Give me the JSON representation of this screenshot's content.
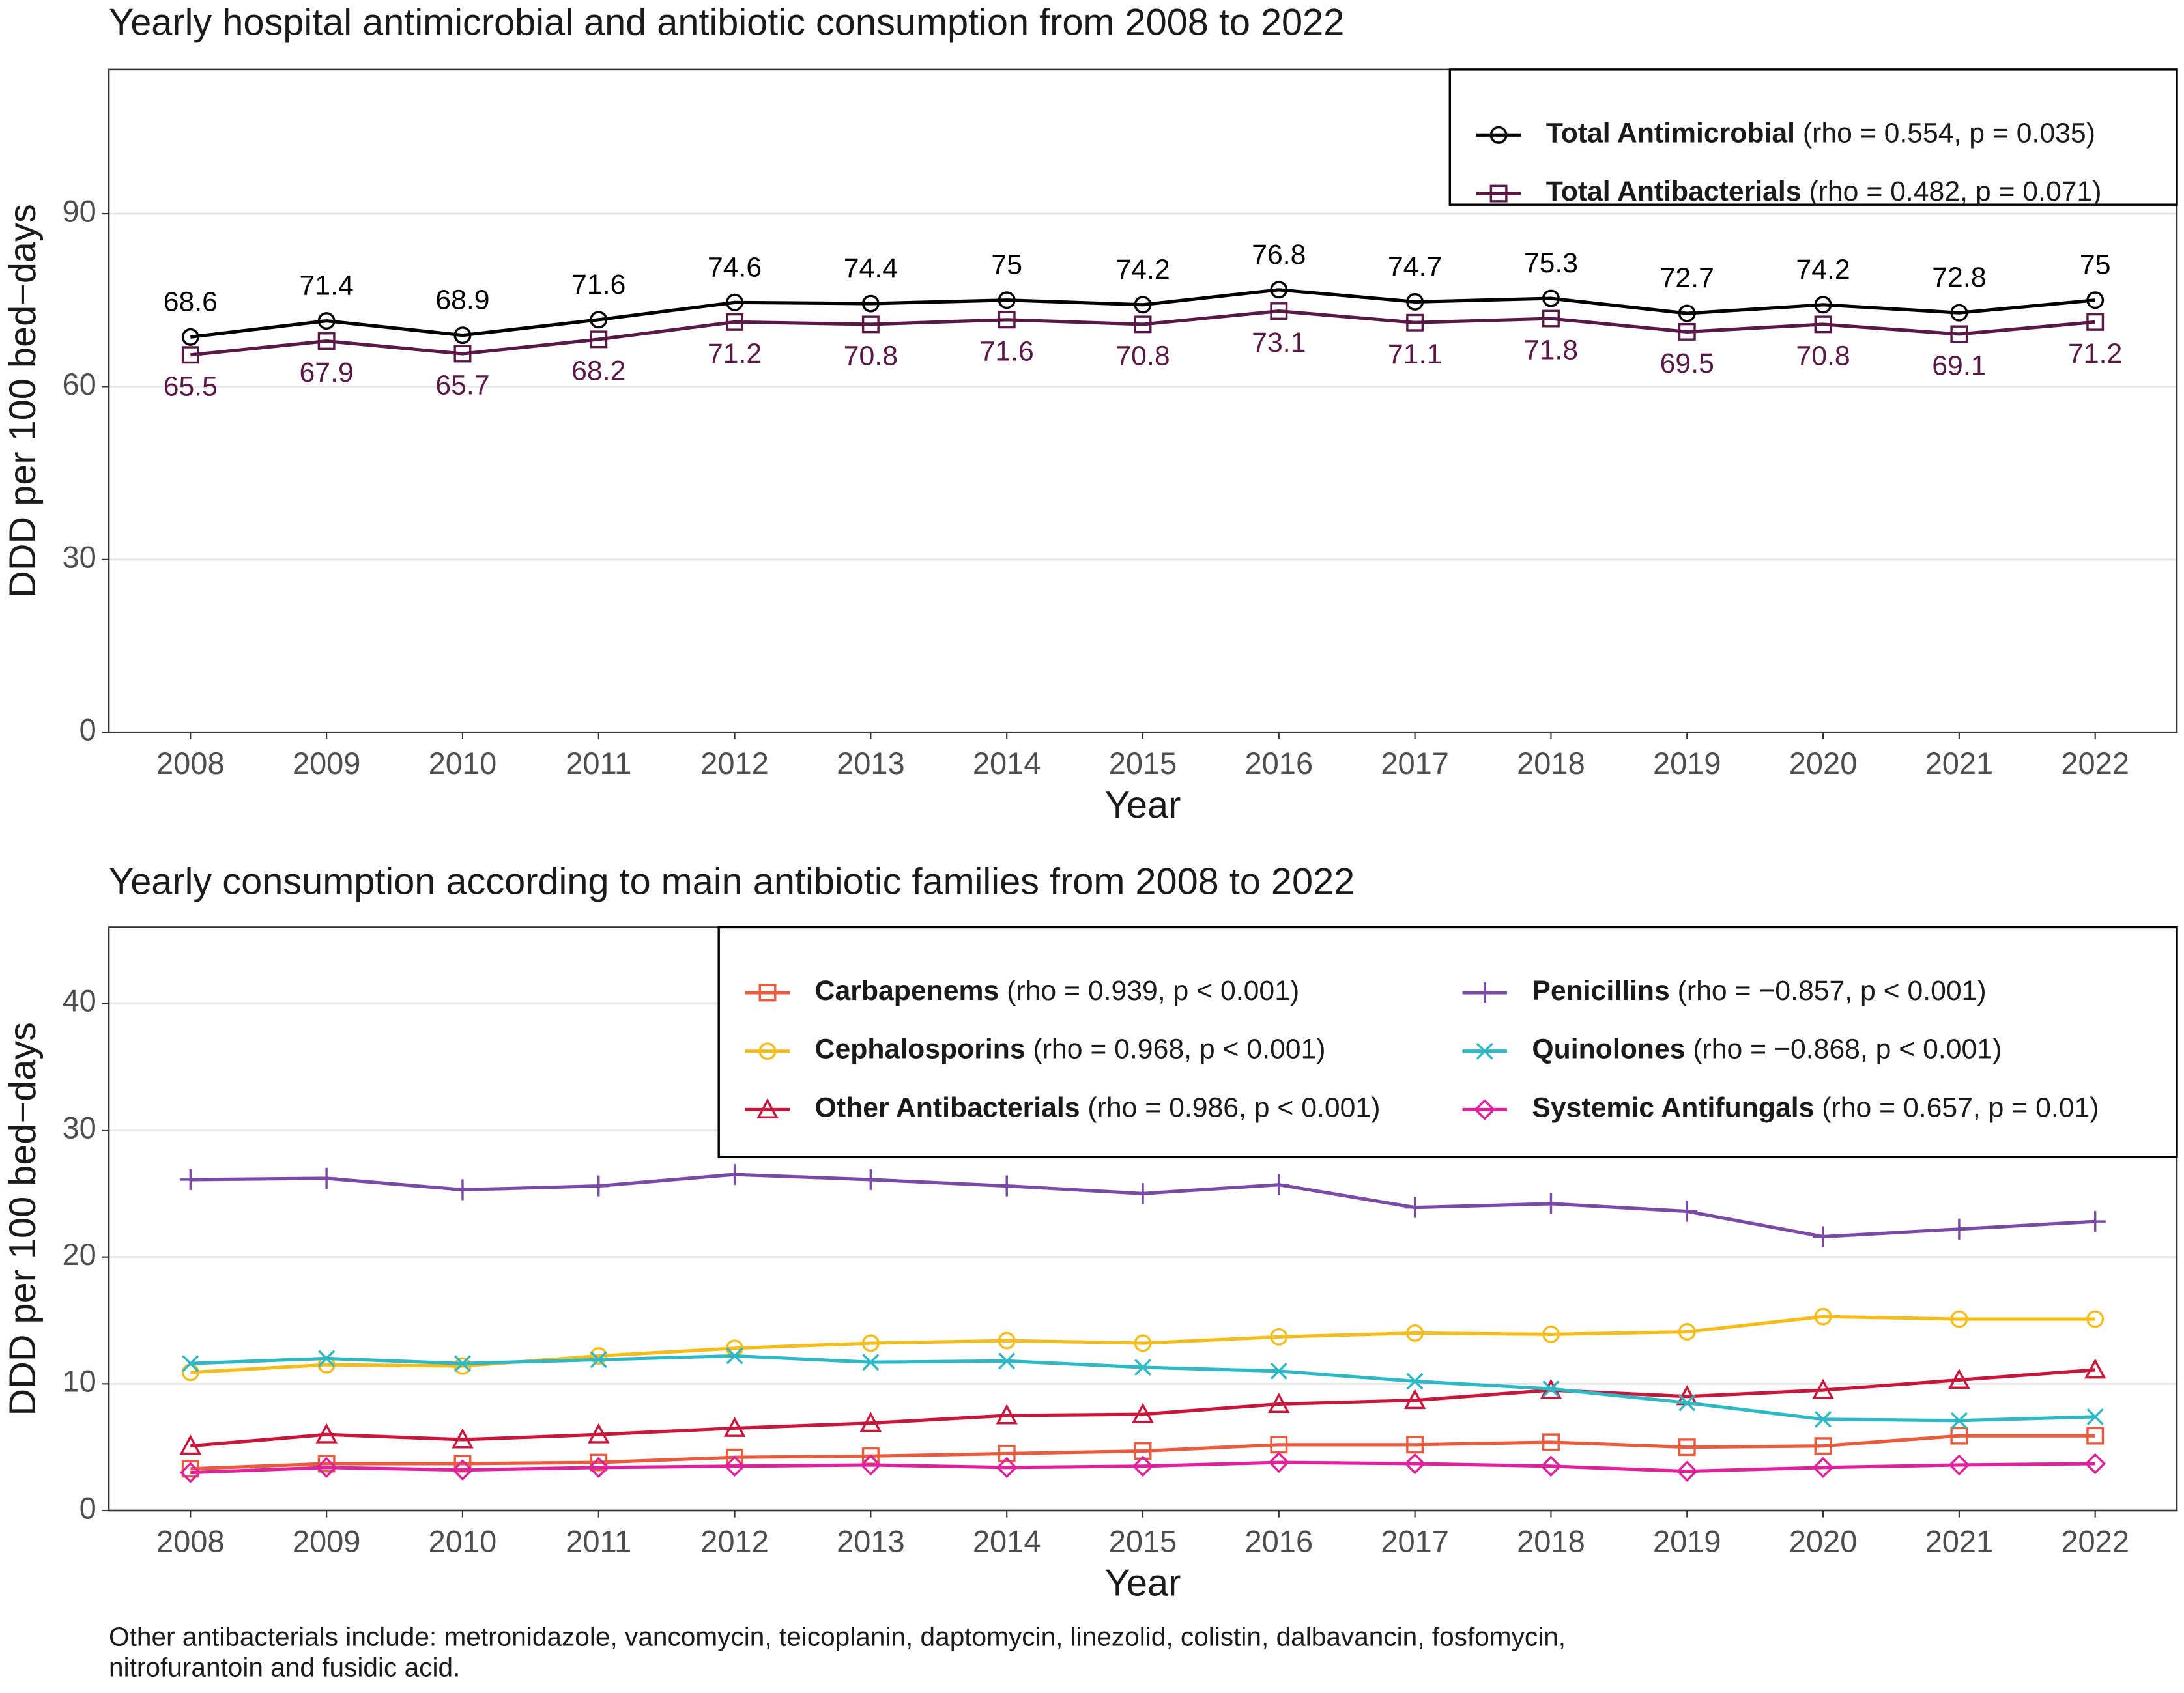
{
  "chart_data": [
    {
      "type": "line",
      "title": "Yearly hospital antimicrobial and antibiotic consumption from 2008 to 2022",
      "x_label": "Year",
      "y_label": "DDD per 100 bed−days",
      "x": [
        2008,
        2009,
        2010,
        2011,
        2012,
        2013,
        2014,
        2015,
        2016,
        2017,
        2018,
        2019,
        2020,
        2021,
        2022
      ],
      "xlim": [
        2007.4,
        2022.6
      ],
      "xticks": [
        2008,
        2009,
        2010,
        2011,
        2012,
        2013,
        2014,
        2015,
        2016,
        2017,
        2018,
        2019,
        2020,
        2021,
        2022
      ],
      "ylim": [
        0,
        115
      ],
      "yticks": [
        0,
        30,
        60,
        90
      ],
      "grid": true,
      "legend_position": "top-right",
      "data_labels": true,
      "series": [
        {
          "name": "Total Antimicrobial",
          "stat": "(rho = 0.554, p = 0.035)",
          "color": "#000000",
          "marker": "circle",
          "values": [
            68.6,
            71.4,
            68.9,
            71.6,
            74.6,
            74.4,
            75,
            74.2,
            76.8,
            74.7,
            75.3,
            72.7,
            74.2,
            72.8,
            75
          ]
        },
        {
          "name": "Total Antibacterials",
          "stat": "(rho = 0.482, p = 0.071)",
          "color": "#5a1846",
          "marker": "square",
          "values": [
            65.5,
            67.9,
            65.7,
            68.2,
            71.2,
            70.8,
            71.6,
            70.8,
            73.1,
            71.1,
            71.8,
            69.5,
            70.8,
            69.1,
            71.2
          ]
        }
      ]
    },
    {
      "type": "line",
      "title": "Yearly consumption according to main antibiotic families from 2008 to 2022",
      "x_label": "Year",
      "y_label": "DDD per 100 bed−days",
      "x": [
        2008,
        2009,
        2010,
        2011,
        2012,
        2013,
        2014,
        2015,
        2016,
        2017,
        2018,
        2019,
        2020,
        2021,
        2022
      ],
      "xlim": [
        2007.4,
        2022.6
      ],
      "xticks": [
        2008,
        2009,
        2010,
        2011,
        2012,
        2013,
        2014,
        2015,
        2016,
        2017,
        2018,
        2019,
        2020,
        2021,
        2022
      ],
      "ylim": [
        0,
        46
      ],
      "yticks": [
        0,
        10,
        20,
        30,
        40
      ],
      "grid": true,
      "legend_position": "top-right",
      "series": [
        {
          "name": "Carbapenems",
          "stat": "(rho = 0.939, p < 0.001)",
          "color": "#ea5a3c",
          "marker": "square",
          "values": [
            3.3,
            3.7,
            3.7,
            3.8,
            4.2,
            4.3,
            4.5,
            4.7,
            5.2,
            5.2,
            5.4,
            5.0,
            5.1,
            5.9,
            5.9
          ]
        },
        {
          "name": "Cephalosporins",
          "stat": "(rho = 0.968, p < 0.001)",
          "color": "#f4bd1b",
          "marker": "circle",
          "values": [
            10.9,
            11.5,
            11.4,
            12.2,
            12.8,
            13.2,
            13.4,
            13.2,
            13.7,
            14.0,
            13.9,
            14.1,
            15.3,
            15.1,
            15.1
          ]
        },
        {
          "name": "Other Antibacterials",
          "stat": "(rho = 0.986, p < 0.001)",
          "color": "#c8173a",
          "marker": "triangle",
          "values": [
            5.1,
            6.0,
            5.6,
            6.0,
            6.5,
            6.9,
            7.5,
            7.6,
            8.4,
            8.7,
            9.5,
            9.0,
            9.5,
            10.3,
            11.1
          ]
        },
        {
          "name": "Penicillins",
          "stat": "(rho = −0.857, p < 0.001)",
          "color": "#7a4aa6",
          "marker": "plus",
          "values": [
            26.1,
            26.2,
            25.3,
            25.6,
            26.5,
            26.1,
            25.6,
            25.0,
            25.7,
            23.9,
            24.2,
            23.6,
            21.6,
            22.2,
            22.8
          ]
        },
        {
          "name": "Quinolones",
          "stat": "(rho = −0.868, p < 0.001)",
          "color": "#2cb8c4",
          "marker": "x",
          "values": [
            11.6,
            12.0,
            11.6,
            11.9,
            12.2,
            11.7,
            11.8,
            11.3,
            11.0,
            10.2,
            9.6,
            8.5,
            7.2,
            7.1,
            7.4
          ]
        },
        {
          "name": "Systemic Antifungals",
          "stat": "(rho = 0.657, p = 0.01)",
          "color": "#df229c",
          "marker": "diamond",
          "values": [
            3.0,
            3.4,
            3.2,
            3.4,
            3.5,
            3.6,
            3.4,
            3.5,
            3.8,
            3.7,
            3.5,
            3.1,
            3.4,
            3.6,
            3.7
          ]
        }
      ],
      "footnote": [
        "Other antibacterials include: metronidazole, vancomycin, teicoplanin, daptomycin, linezolid, colistin, dalbavancin, fosfomycin,",
        "nitrofurantoin and fusidic acid."
      ]
    }
  ]
}
